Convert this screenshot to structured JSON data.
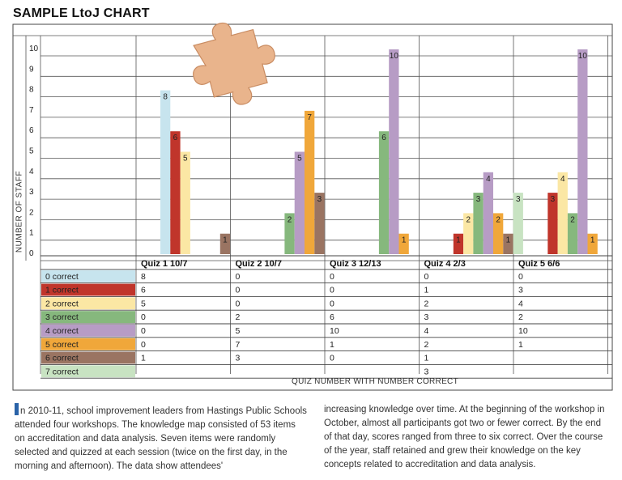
{
  "chart_data": {
    "type": "bar",
    "title": "SAMPLE LtoJ CHART",
    "ylabel": "NUMBER OF STAFF",
    "xlabel": "QUIZ NUMBER WITH NUMBER CORRECT",
    "ylim": [
      0,
      10
    ],
    "yticks": [
      "0",
      "1",
      "2",
      "3",
      "4",
      "5",
      "6",
      "7",
      "8",
      "9",
      "10"
    ],
    "categories": [
      "Quiz 1 10/7",
      "Quiz 2 10/7",
      "Quiz 3 12/13",
      "Quiz 4 2/3",
      "Quiz 5 6/6"
    ],
    "series": [
      {
        "name": "0 correct",
        "color": "#c7e4ee",
        "values": [
          8,
          0,
          0,
          0,
          0
        ],
        "cells": [
          "8",
          "0",
          "0",
          "0",
          "0"
        ]
      },
      {
        "name": "1 correct",
        "color": "#c0352b",
        "values": [
          6,
          0,
          0,
          1,
          3
        ],
        "cells": [
          "6",
          "0",
          "0",
          "1",
          "3"
        ]
      },
      {
        "name": "2 correct",
        "color": "#fbe7a4",
        "values": [
          5,
          0,
          0,
          2,
          4
        ],
        "cells": [
          "5",
          "0",
          "0",
          "2",
          "4"
        ]
      },
      {
        "name": "3 correct",
        "color": "#86b87d",
        "values": [
          0,
          2,
          6,
          3,
          2
        ],
        "cells": [
          "0",
          "2",
          "6",
          "3",
          "2"
        ]
      },
      {
        "name": "4 correct",
        "color": "#b79cc5",
        "values": [
          0,
          5,
          10,
          4,
          10
        ],
        "cells": [
          "0",
          "5",
          "10",
          "4",
          "10"
        ]
      },
      {
        "name": "5 correct",
        "color": "#f0a73a",
        "values": [
          0,
          7,
          1,
          2,
          1
        ],
        "cells": [
          "0",
          "7",
          "1",
          "2",
          "1"
        ]
      },
      {
        "name": "6 correct",
        "color": "#9a7462",
        "values": [
          1,
          3,
          0,
          1,
          0
        ],
        "cells": [
          "1",
          "3",
          "0",
          "1",
          ""
        ]
      },
      {
        "name": "7 correct",
        "color": "#c8e3c2",
        "values": [
          0,
          0,
          0,
          3,
          0
        ],
        "cells": [
          "",
          "",
          "",
          "3",
          ""
        ]
      }
    ],
    "bar_labels": [
      [
        8,
        6,
        5,
        null,
        null,
        null,
        1,
        null
      ],
      [
        null,
        null,
        null,
        2,
        5,
        7,
        3,
        null
      ],
      [
        null,
        null,
        null,
        6,
        10,
        1,
        null,
        null
      ],
      [
        null,
        1,
        2,
        3,
        4,
        2,
        1,
        3
      ],
      [
        null,
        3,
        4,
        2,
        10,
        1,
        null,
        null
      ]
    ],
    "grid": true,
    "legend": "table below chart"
  },
  "text": {
    "col1": "n 2010-11, school improvement leaders from Hastings Public Schools attended four workshops. The knowledge map consisted of 53 items on accreditation and data analysis. Seven items were randomly selected and quizzed at each session (twice on the first day, in the morning and afternoon). The data show attendees'",
    "col2": "increasing knowledge over time. At the beginning of the workshop in October, almost all participants got two or fewer correct. By the end of that day, scores ranged from three to six correct. Over the course of the year, staff retained and grew their knowledge on the key concepts related to accreditation and data analysis."
  },
  "decoration": {
    "puzzle_piece_icon": "puzzle-piece-icon",
    "puzzle_color": "#e9b48c"
  }
}
